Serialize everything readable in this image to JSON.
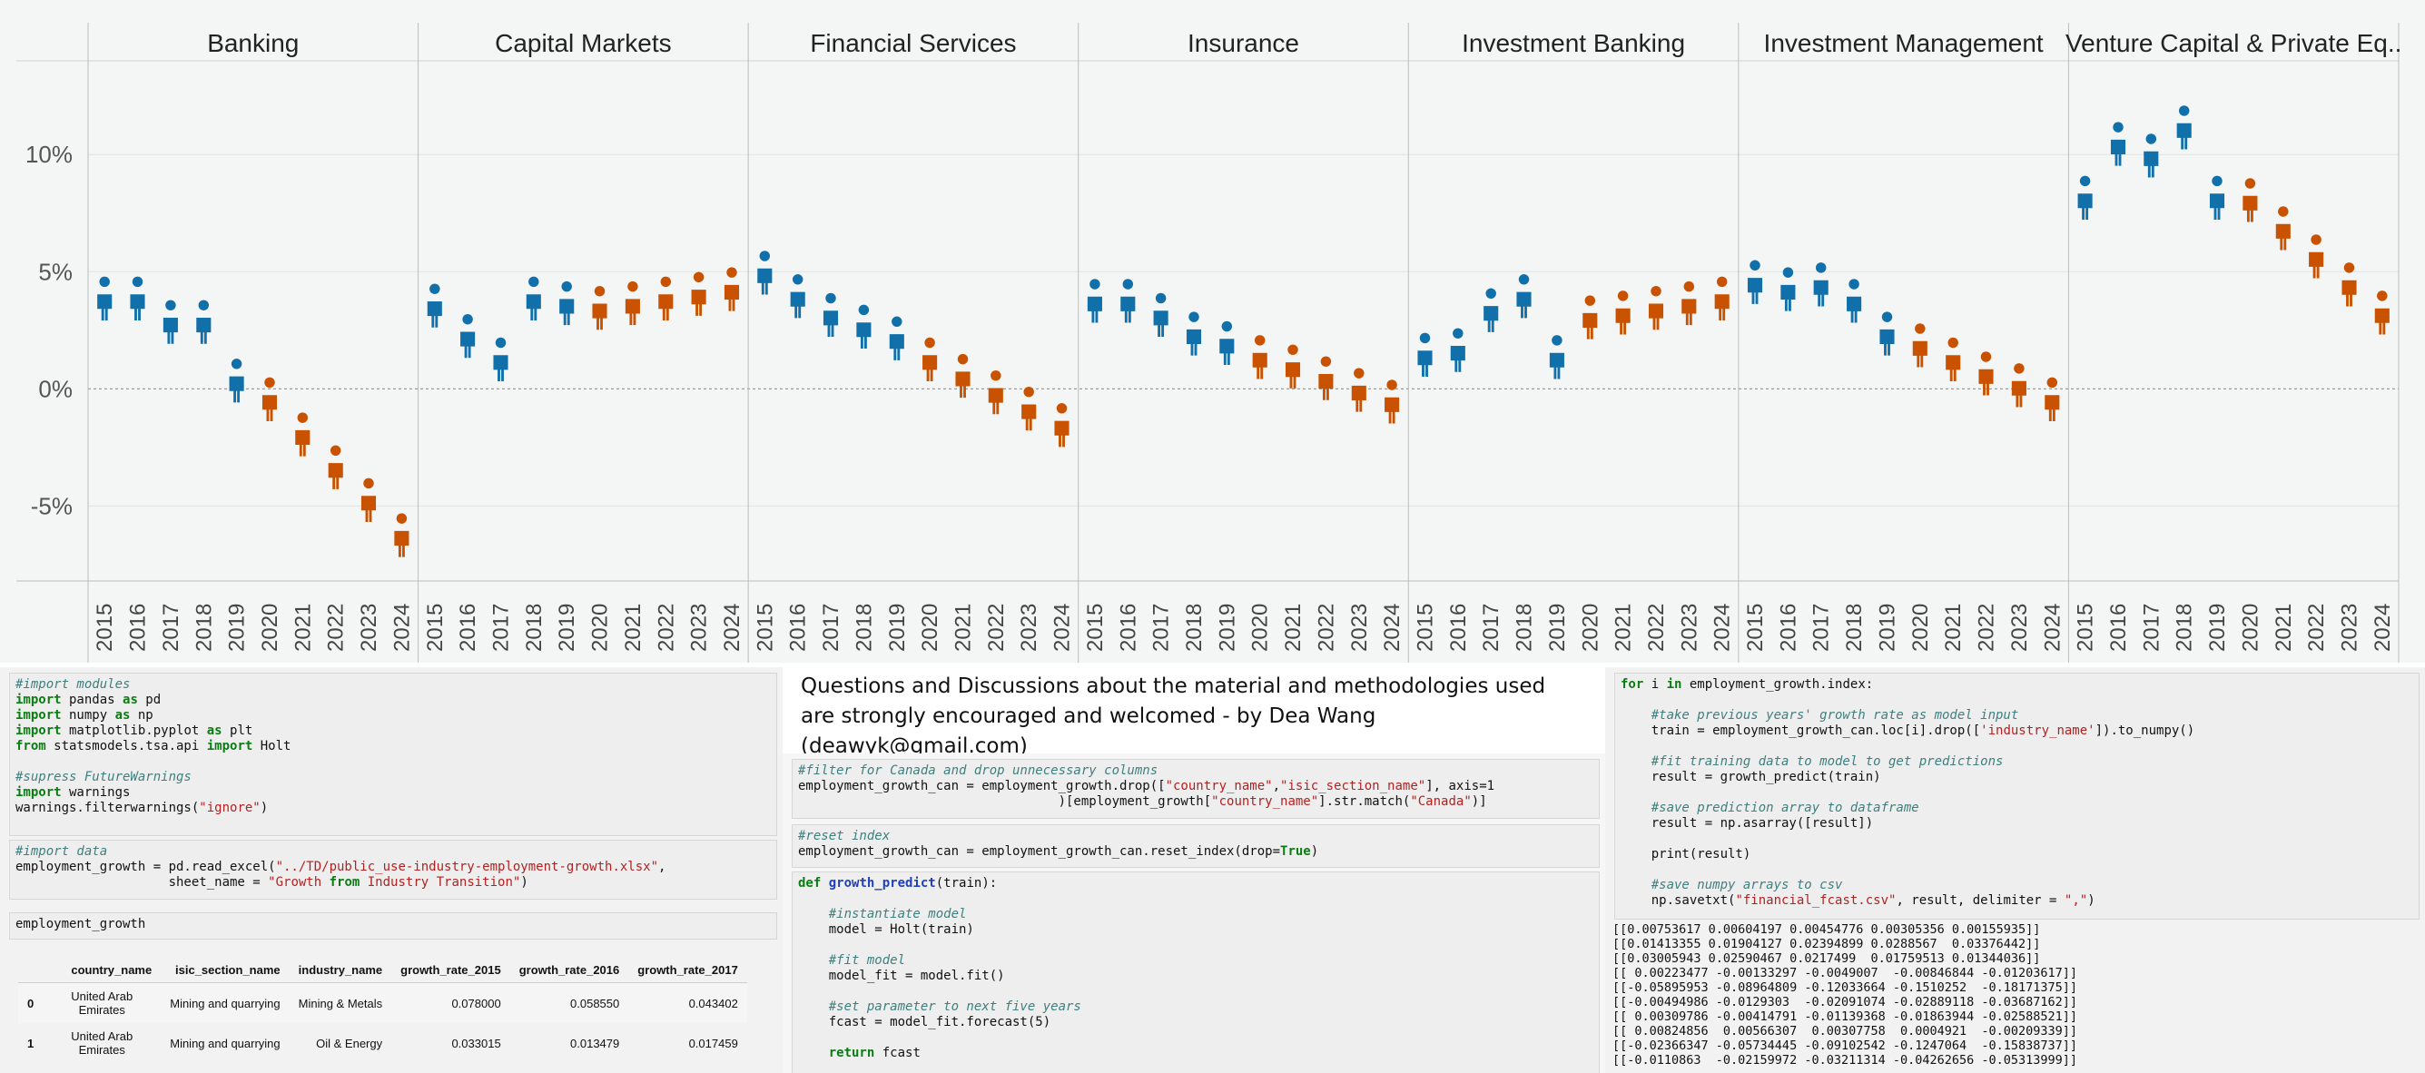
{
  "chart_data": {
    "type": "scatter",
    "marker": "person-icon",
    "title": "",
    "xlabel": "",
    "ylabel": "",
    "ylim": [
      -8.2,
      14
    ],
    "y_ticks": [
      10,
      5,
      0,
      -5
    ],
    "y_tick_labels": [
      "10%",
      "5%",
      "0%",
      "-5%"
    ],
    "grid": true,
    "colors": {
      "actual": "#1170aa",
      "forecast": "#c85200",
      "background": "#f4f6f6"
    },
    "forecast_start_year": 2020,
    "x": [
      "2015",
      "2016",
      "2017",
      "2018",
      "2019",
      "2020",
      "2021",
      "2022",
      "2023",
      "2024"
    ],
    "panels": [
      {
        "name": "Banking",
        "values": [
          3.5,
          3.5,
          2.5,
          2.5,
          0.0,
          -0.8,
          -2.3,
          -3.7,
          -5.1,
          -6.6
        ]
      },
      {
        "name": "Capital Markets",
        "values": [
          3.2,
          1.9,
          0.9,
          3.5,
          3.3,
          3.1,
          3.3,
          3.5,
          3.7,
          3.9
        ]
      },
      {
        "name": "Financial Services",
        "values": [
          4.6,
          3.6,
          2.8,
          2.3,
          1.8,
          0.9,
          0.2,
          -0.5,
          -1.2,
          -1.9
        ]
      },
      {
        "name": "Insurance",
        "values": [
          3.4,
          3.4,
          2.8,
          2.0,
          1.6,
          1.0,
          0.6,
          0.1,
          -0.4,
          -0.9
        ]
      },
      {
        "name": "Investment Banking",
        "values": [
          1.1,
          1.3,
          3.0,
          3.6,
          1.0,
          2.7,
          2.9,
          3.1,
          3.3,
          3.5
        ]
      },
      {
        "name": "Investment Management",
        "values": [
          4.2,
          3.9,
          4.1,
          3.4,
          2.0,
          1.5,
          0.9,
          0.3,
          -0.2,
          -0.8
        ]
      },
      {
        "name": "Venture Capital & Private Eq..",
        "values": [
          7.8,
          10.1,
          9.6,
          10.8,
          7.8,
          7.7,
          6.5,
          5.3,
          4.1,
          2.9
        ]
      }
    ]
  },
  "code_left": {
    "cell1": [
      {
        "t": "cmt",
        "v": "#import modules"
      },
      {
        "t": "code",
        "v": "import pandas as pd"
      },
      {
        "t": "code",
        "v": "import numpy as np"
      },
      {
        "t": "code",
        "v": "import matplotlib.pyplot as plt"
      },
      {
        "t": "code",
        "v": "from statsmodels.tsa.api import Holt"
      },
      {
        "t": "blank",
        "v": ""
      },
      {
        "t": "cmt",
        "v": "#supress FutureWarnings"
      },
      {
        "t": "code",
        "v": "import warnings"
      },
      {
        "t": "code",
        "v": "warnings.filterwarnings(\"ignore\")"
      }
    ],
    "cell2": [
      {
        "t": "cmt",
        "v": "#import data"
      },
      {
        "t": "code",
        "v": "employment_growth = pd.read_excel(\"../TD/public_use-industry-employment-growth.xlsx\","
      },
      {
        "t": "code",
        "v": "                    sheet_name = \"Growth from Industry Transition\")"
      }
    ],
    "cell3": [
      {
        "t": "code",
        "v": "employment_growth"
      }
    ],
    "table": {
      "headers": [
        "",
        "country_name",
        "isic_section_name",
        "industry_name",
        "growth_rate_2015",
        "growth_rate_2016",
        "growth_rate_2017"
      ],
      "rows": [
        [
          "0",
          "United Arab Emirates",
          "Mining and quarrying",
          "Mining & Metals",
          "0.078000",
          "0.058550",
          "0.043402"
        ],
        [
          "1",
          "United Arab Emirates",
          "Mining and quarrying",
          "Oil & Energy",
          "0.033015",
          "0.013479",
          "0.017459"
        ]
      ]
    }
  },
  "note": "Questions and Discussions about the material and methodologies used are strongly encouraged and welcomed - by Dea Wang (deawyk@gmail.com)",
  "code_mid": {
    "cell1": [
      {
        "t": "cmt",
        "v": "#filter for Canada and drop unnecessary columns"
      },
      {
        "t": "code",
        "v": "employment_growth_can = employment_growth.drop([\"country_name\",\"isic_section_name\"], axis=1"
      },
      {
        "t": "code",
        "v": "                                  )[employment_growth[\"country_name\"].str.match(\"Canada\")]"
      }
    ],
    "cell2": [
      {
        "t": "cmt",
        "v": "#reset index"
      },
      {
        "t": "code",
        "v": "employment_growth_can = employment_growth_can.reset_index(drop=True)"
      }
    ],
    "cell3": [
      {
        "t": "code",
        "v": "def growth_predict(train):"
      },
      {
        "t": "blank",
        "v": ""
      },
      {
        "t": "cmt",
        "v": "    #instantiate model"
      },
      {
        "t": "code",
        "v": "    model = Holt(train)"
      },
      {
        "t": "blank",
        "v": ""
      },
      {
        "t": "cmt",
        "v": "    #fit model"
      },
      {
        "t": "code",
        "v": "    model_fit = model.fit()"
      },
      {
        "t": "blank",
        "v": ""
      },
      {
        "t": "cmt",
        "v": "    #set parameter to next five years"
      },
      {
        "t": "code",
        "v": "    fcast = model_fit.forecast(5)"
      },
      {
        "t": "blank",
        "v": ""
      },
      {
        "t": "code",
        "v": "    return fcast"
      }
    ]
  },
  "code_right": {
    "cell1": [
      {
        "t": "code",
        "v": "for i in employment_growth.index:"
      },
      {
        "t": "blank",
        "v": ""
      },
      {
        "t": "cmt",
        "v": "    #take previous years' growth rate as model input"
      },
      {
        "t": "code",
        "v": "    train = employment_growth_can.loc[i].drop(['industry_name']).to_numpy()"
      },
      {
        "t": "blank",
        "v": ""
      },
      {
        "t": "cmt",
        "v": "    #fit training data to model to get predictions"
      },
      {
        "t": "code",
        "v": "    result = growth_predict(train)"
      },
      {
        "t": "blank",
        "v": ""
      },
      {
        "t": "cmt",
        "v": "    #save prediction array to dataframe"
      },
      {
        "t": "code",
        "v": "    result = np.asarray([result])"
      },
      {
        "t": "blank",
        "v": ""
      },
      {
        "t": "code",
        "v": "    print(result)"
      },
      {
        "t": "blank",
        "v": ""
      },
      {
        "t": "cmt",
        "v": "    #save numpy arrays to csv"
      },
      {
        "t": "code",
        "v": "    np.savetxt(\"financial_fcast.csv\", result, delimiter = \",\")"
      }
    ],
    "output": [
      "[[0.00753617 0.00604197 0.00454776 0.00305356 0.00155935]]",
      "[[0.01413355 0.01904127 0.02394899 0.0288567  0.03376442]]",
      "[[0.03005943 0.02590467 0.0217499  0.01759513 0.01344036]]",
      "[[ 0.00223477 -0.00133297 -0.0049007  -0.00846844 -0.01203617]]",
      "[[-0.05895953 -0.08964809 -0.12033664 -0.1510252  -0.18171375]]",
      "[[-0.00494986 -0.0129303  -0.02091074 -0.02889118 -0.03687162]]",
      "[[ 0.00309786 -0.00414791 -0.01139368 -0.01863944 -0.02588521]]",
      "[[ 0.00824856  0.00566307  0.00307758  0.0004921  -0.00209339]]",
      "[[-0.02366347 -0.05734445 -0.09102542 -0.1247064  -0.15838737]]",
      "[[-0.0110863  -0.02159972 -0.03211314 -0.04262656 -0.05313999]]"
    ]
  }
}
